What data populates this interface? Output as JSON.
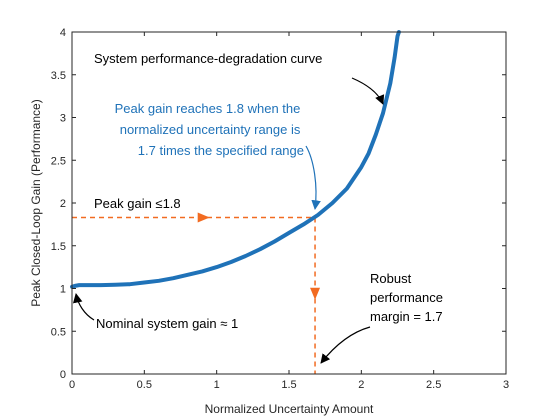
{
  "chart_data": {
    "type": "line",
    "title": "",
    "xlabel": "Normalized Uncertainty Amount",
    "ylabel": "Peak Closed-Loop Gain (Performance)",
    "xlim": [
      0,
      3
    ],
    "ylim": [
      0,
      4
    ],
    "xticks": [
      "0",
      "0.5",
      "1",
      "1.5",
      "2",
      "2.5",
      "3"
    ],
    "yticks": [
      "0",
      "0.5",
      "1",
      "1.5",
      "2",
      "2.5",
      "3",
      "3.5",
      "4"
    ],
    "grid": false,
    "series": [
      {
        "color": "#1f72b8",
        "x": [
          0,
          0.02,
          0.05,
          0.1,
          0.2,
          0.3,
          0.4,
          0.5,
          0.6,
          0.7,
          0.8,
          0.9,
          1.0,
          1.1,
          1.2,
          1.3,
          1.4,
          1.5,
          1.6,
          1.7,
          1.8,
          1.9,
          2.0,
          2.05,
          2.1,
          2.15,
          2.2,
          2.23,
          2.25,
          2.26
        ],
        "y": [
          1.02,
          1.03,
          1.04,
          1.04,
          1.04,
          1.045,
          1.05,
          1.07,
          1.09,
          1.12,
          1.16,
          1.2,
          1.25,
          1.31,
          1.38,
          1.46,
          1.55,
          1.65,
          1.75,
          1.86,
          2.0,
          2.17,
          2.42,
          2.58,
          2.8,
          3.05,
          3.4,
          3.7,
          3.95,
          4.0
        ]
      }
    ],
    "reference_lines": {
      "color": "#f26b21",
      "point": [
        1.68,
        1.83
      ]
    },
    "annotations": [
      {
        "id": "degradation",
        "lines": [
          "System performance-degradation curve"
        ],
        "color": "#000000",
        "points_to": [
          2.18,
          3.22
        ]
      },
      {
        "id": "peak",
        "lines": [
          "Peak gain reaches 1.8 when the",
          "normalized uncertainty range is",
          "1.7 times the specified range"
        ],
        "color": "#1f72b8",
        "points_to": [
          1.68,
          1.87
        ]
      },
      {
        "id": "peakgain",
        "lines": [
          "Peak gain ≤1.8"
        ],
        "color": "#000000"
      },
      {
        "id": "nominal",
        "lines": [
          "Nominal system gain ≈ 1"
        ],
        "color": "#000000",
        "points_to": [
          0.02,
          1.0
        ]
      },
      {
        "id": "robust",
        "lines": [
          "Robust",
          "performance",
          "margin = 1.7"
        ],
        "color": "#000000",
        "points_to": [
          1.69,
          0.1
        ]
      }
    ]
  }
}
